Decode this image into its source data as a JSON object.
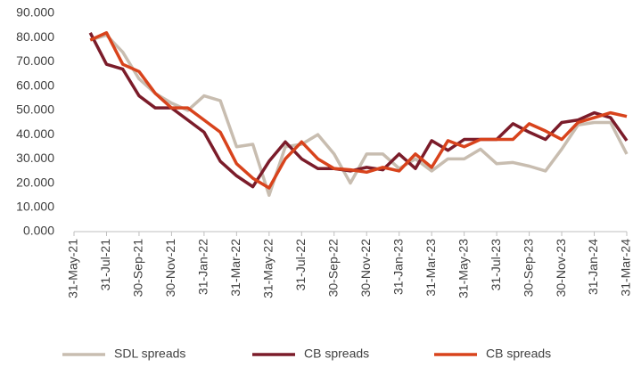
{
  "chart_data": {
    "type": "line",
    "categories": [
      "31-May-21",
      null,
      "31-Jul-21",
      null,
      "30-Sep-21",
      null,
      "30-Nov-21",
      null,
      "31-Jan-22",
      null,
      "31-Mar-22",
      null,
      "31-May-22",
      null,
      "31-Jul-22",
      null,
      "30-Sep-22",
      null,
      "30-Nov-22",
      null,
      "31-Jan-23",
      null,
      "31-Mar-23",
      null,
      "31-May-23",
      null,
      "31-Jul-23",
      null,
      "30-Sep-23",
      null,
      "30-Nov-23",
      null,
      "31-Jan-24",
      null,
      "31-Mar-24"
    ],
    "series": [
      {
        "name": "SDL spreads",
        "color": "#c8bdb0",
        "values": [
          null,
          79,
          81,
          74,
          63,
          57,
          53,
          50,
          56,
          54,
          35,
          36,
          15,
          35,
          36,
          40,
          32,
          20,
          32,
          32,
          26,
          30,
          25,
          30,
          30,
          34,
          28,
          28.5,
          27,
          25,
          34,
          44,
          45,
          45,
          32
        ]
      },
      {
        "name": "CB spreads",
        "color": "#7b1c2a",
        "values": [
          null,
          82,
          69,
          67,
          56,
          51,
          51,
          46,
          41,
          29,
          23,
          18.5,
          29,
          37,
          30,
          26,
          26,
          25,
          26.5,
          25.5,
          32,
          26,
          37.5,
          33.5,
          38,
          38,
          38,
          44.5,
          41,
          38,
          45,
          46,
          49,
          47,
          37.5
        ]
      },
      {
        "name": "CB spreads",
        "color": "#d8431c",
        "values": [
          null,
          79,
          82,
          69,
          66,
          57,
          51,
          51,
          46,
          41,
          28,
          22,
          18,
          30,
          37,
          30,
          26,
          25.5,
          24.5,
          26.5,
          25,
          32,
          26.5,
          37.5,
          35,
          38,
          38,
          38,
          44.5,
          41.5,
          38,
          45,
          47,
          49,
          47.5
        ]
      }
    ],
    "ylim": [
      0,
      90
    ],
    "yticks": [
      {
        "value": 0,
        "label": "0.000"
      },
      {
        "value": 10,
        "label": "10.000"
      },
      {
        "value": 20,
        "label": "20.000"
      },
      {
        "value": 30,
        "label": "30.000"
      },
      {
        "value": 40,
        "label": "40.000"
      },
      {
        "value": 50,
        "label": "50.000"
      },
      {
        "value": 60,
        "label": "60.000"
      },
      {
        "value": 70,
        "label": "70.000"
      },
      {
        "value": 80,
        "label": "80.000"
      },
      {
        "value": 90,
        "label": "90.000"
      }
    ],
    "legend": "bottom"
  }
}
